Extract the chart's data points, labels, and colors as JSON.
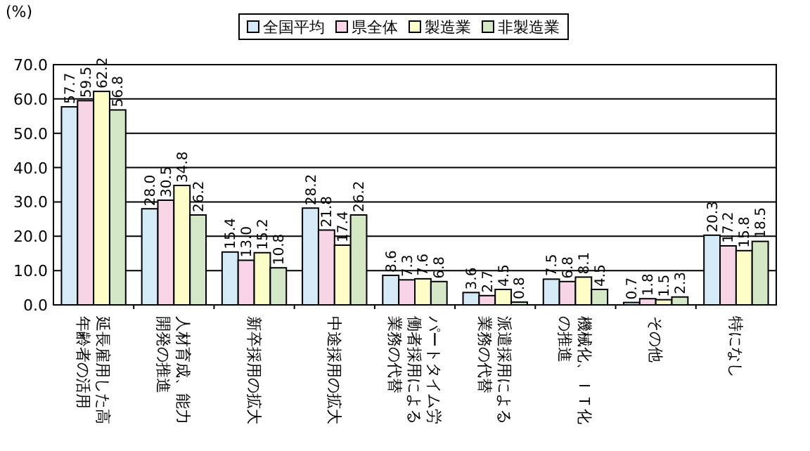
{
  "chart_data": {
    "type": "bar",
    "ylabel": "(%)",
    "categories": [
      "延長雇用した高年齢者の活用",
      "人材育成、能力開発の推進",
      "新卒採用の拡大",
      "中途採用の拡大",
      "パートタイム労働者採用による業務の代替",
      "派遣採用による業務の代替",
      "機械化、ＩＴ化の推進",
      "その他",
      "特になし"
    ],
    "series": [
      {
        "name": "全国平均",
        "color": "#d5ebf8",
        "values": [
          57.7,
          28.0,
          15.4,
          28.2,
          8.6,
          3.6,
          7.5,
          0.7,
          20.3
        ],
        "value_labels": [
          "57.7",
          "28.0",
          "15.4",
          "28.2",
          "8.6",
          "3.6",
          "7.5",
          "0.7",
          "20.3"
        ]
      },
      {
        "name": "県全体",
        "color": "#f8d5e6",
        "values": [
          59.5,
          30.5,
          13.0,
          21.8,
          7.3,
          2.7,
          6.8,
          1.8,
          17.2
        ],
        "value_labels": [
          "59.5",
          "30.5",
          "13.0",
          "21.8",
          "7.3",
          "2.7",
          "6.8",
          "1.8",
          "17.2"
        ]
      },
      {
        "name": "製造業",
        "color": "#fdfdc8",
        "values": [
          62.2,
          34.8,
          15.2,
          17.4,
          7.6,
          4.5,
          8.1,
          1.5,
          15.8
        ],
        "value_labels": [
          "62.2",
          "34.8",
          "15.2",
          "17.4",
          "7.6",
          "4.5",
          "8.1",
          "1.5",
          "15.8"
        ]
      },
      {
        "name": "非製造業",
        "color": "#d5e8c5",
        "values": [
          56.8,
          26.2,
          10.8,
          26.2,
          6.8,
          0.8,
          4.5,
          2.3,
          18.5
        ],
        "value_labels": [
          "56.8",
          "26.2",
          "10.8",
          "26.2",
          "6.8",
          "0.8",
          "4.5",
          "2.3",
          "18.5"
        ]
      }
    ],
    "ylim": [
      0,
      70
    ],
    "yticks": [
      {
        "value": 0,
        "label": "0.0"
      },
      {
        "value": 10,
        "label": "10.0"
      },
      {
        "value": 20,
        "label": "20.0"
      },
      {
        "value": 30,
        "label": "30.0"
      },
      {
        "value": 40,
        "label": "40.0"
      },
      {
        "value": 50,
        "label": "50.0"
      },
      {
        "value": 60,
        "label": "60.0"
      },
      {
        "value": 70,
        "label": "70.0"
      }
    ],
    "grid": "y",
    "legend": "top"
  }
}
